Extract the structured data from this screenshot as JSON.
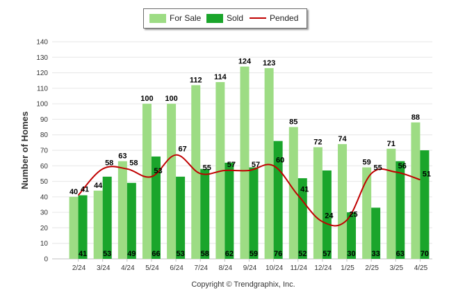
{
  "chart_data": {
    "type": "bar",
    "ylabel": "Number of Homes",
    "ylim": [
      0,
      140
    ],
    "ytick_step": 10,
    "grid": true,
    "legend_position": "top-center",
    "categories": [
      "2/24",
      "3/24",
      "4/24",
      "5/24",
      "6/24",
      "7/24",
      "8/24",
      "9/24",
      "10/24",
      "11/24",
      "12/24",
      "1/25",
      "2/25",
      "3/25",
      "4/25"
    ],
    "series": [
      {
        "name": "For Sale",
        "kind": "bar",
        "color": "#9ddc84",
        "values": [
          40,
          44,
          63,
          100,
          100,
          112,
          114,
          124,
          123,
          85,
          72,
          74,
          59,
          71,
          88
        ]
      },
      {
        "name": "Sold",
        "kind": "bar",
        "color": "#1aa52b",
        "values": [
          41,
          53,
          49,
          66,
          53,
          58,
          62,
          59,
          76,
          52,
          57,
          30,
          33,
          63,
          70
        ]
      },
      {
        "name": "Pended",
        "kind": "line",
        "color": "#c00000",
        "values": [
          41,
          58,
          58,
          53,
          67,
          55,
          57,
          57,
          60,
          41,
          24,
          25,
          55,
          56,
          51
        ]
      }
    ],
    "footer": "Copyright © Trendgraphix, Inc."
  }
}
